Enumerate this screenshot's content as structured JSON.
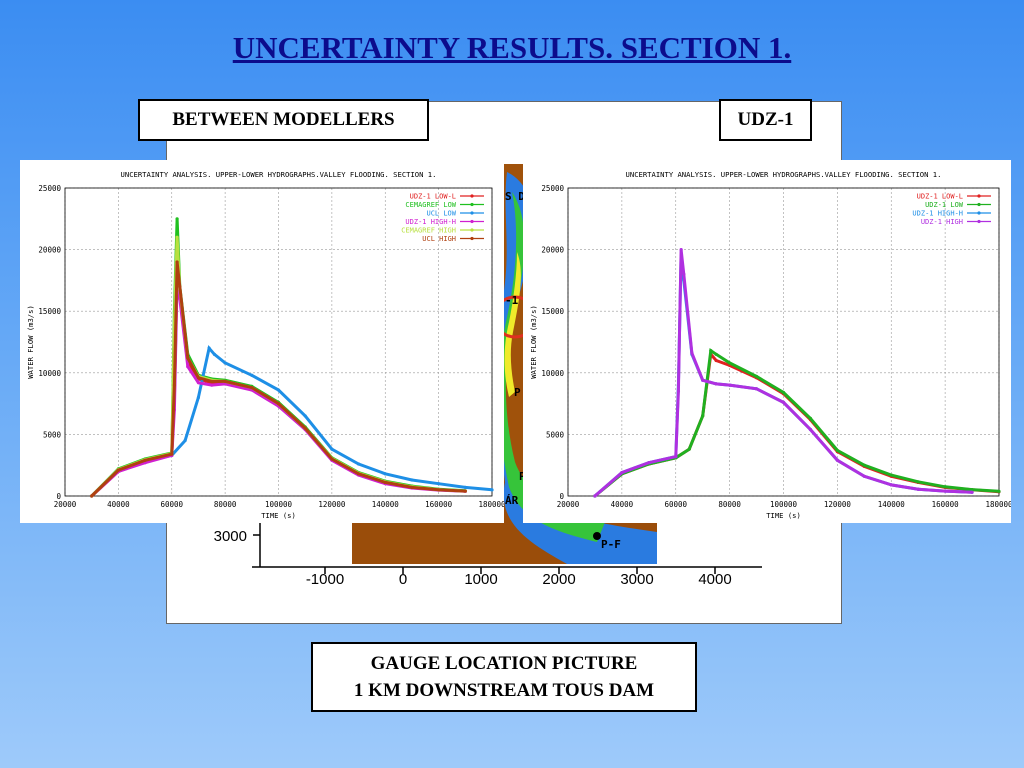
{
  "slide": {
    "title": "UNCERTAINTY RESULTS. SECTION 1.",
    "label_left": "BETWEEN MODELLERS",
    "label_right": "UDZ-1",
    "caption_line1": "GAUGE LOCATION PICTURE",
    "caption_line2": "1 KM DOWNSTREAM TOUS DAM"
  },
  "map": {
    "y_tick": "3000",
    "x_ticks": [
      "-1000",
      "0",
      "1000",
      "2000",
      "3000",
      "4000"
    ],
    "x_values": [
      -1000,
      0,
      1000,
      2000,
      3000,
      4000
    ],
    "fragments": [
      "S D",
      "-1",
      "P",
      "P",
      "ÁR",
      "P-F"
    ],
    "colors": {
      "terrain": "#a0520b",
      "flood_blue": "#2a7be0",
      "flood_green": "#36c43a",
      "flood_yellow": "#f0ea2a",
      "flood_red": "#e03020"
    }
  },
  "chart_data": [
    {
      "type": "line",
      "title": "UNCERTAINTY ANALYSIS. UPPER-LOWER HYDROGRAPHS.VALLEY FLOODING. SECTION 1.",
      "xlabel": "TIME (s)",
      "ylabel": "WATER FLOW (m3/s)",
      "xlim": [
        20000,
        180000
      ],
      "ylim": [
        0,
        25000
      ],
      "x_ticks": [
        20000,
        40000,
        60000,
        80000,
        100000,
        120000,
        140000,
        160000,
        180000
      ],
      "y_ticks": [
        0,
        5000,
        10000,
        15000,
        20000,
        25000
      ],
      "grid": true,
      "legend_position": "top-right",
      "series": [
        {
          "name": "UDZ-1 LOW-L",
          "color": "#e02020",
          "x": [
            30000,
            40000,
            50000,
            60000,
            61000,
            62000,
            63000,
            66000,
            70000,
            75000,
            80000,
            90000,
            100000,
            110000,
            120000,
            130000,
            140000,
            150000,
            160000,
            170000
          ],
          "y": [
            0,
            2000,
            2800,
            3400,
            8000,
            18000,
            16500,
            11000,
            9500,
            9200,
            9200,
            8700,
            7500,
            5500,
            3000,
            1800,
            1100,
            700,
            500,
            400
          ]
        },
        {
          "name": "CEMAGREF LOW",
          "color": "#20c020",
          "x": [
            30000,
            40000,
            50000,
            60000,
            61000,
            62000,
            63000,
            66000,
            70000,
            75000,
            80000,
            90000,
            100000,
            110000,
            120000,
            130000,
            140000,
            150000,
            160000,
            170000
          ],
          "y": [
            0,
            2200,
            3000,
            3500,
            15000,
            22500,
            17000,
            11500,
            9800,
            9500,
            9400,
            8900,
            7600,
            5600,
            3100,
            1900,
            1200,
            800,
            550,
            420
          ]
        },
        {
          "name": "UCL LOW",
          "color": "#1e8fe6",
          "x": [
            30000,
            40000,
            50000,
            60000,
            65000,
            70000,
            74000,
            76000,
            80000,
            90000,
            100000,
            110000,
            120000,
            130000,
            140000,
            150000,
            160000,
            170000,
            180000
          ],
          "y": [
            0,
            2100,
            2800,
            3300,
            4500,
            8000,
            12000,
            11500,
            10800,
            9800,
            8600,
            6500,
            3800,
            2600,
            1800,
            1300,
            1000,
            700,
            500
          ]
        },
        {
          "name": "UDZ-1 HIGH-H",
          "color": "#d020d0",
          "x": [
            30000,
            40000,
            50000,
            60000,
            61000,
            62000,
            63000,
            66000,
            70000,
            75000,
            80000,
            90000,
            100000,
            110000,
            120000,
            130000,
            140000,
            150000,
            160000,
            170000
          ],
          "y": [
            0,
            2000,
            2700,
            3300,
            7000,
            17500,
            16000,
            10500,
            9200,
            9000,
            9100,
            8600,
            7300,
            5400,
            2900,
            1700,
            1000,
            650,
            480,
            380
          ]
        },
        {
          "name": "CEMAGREF HIGH",
          "color": "#b8e040",
          "x": [
            30000,
            40000,
            50000,
            60000,
            61000,
            62000,
            63000,
            66000,
            70000,
            75000,
            80000,
            90000,
            100000,
            110000,
            120000,
            130000,
            140000,
            150000,
            160000,
            170000
          ],
          "y": [
            0,
            2150,
            2950,
            3450,
            14000,
            21000,
            16800,
            11200,
            9700,
            9400,
            9300,
            8800,
            7500,
            5500,
            3050,
            1850,
            1150,
            750,
            520,
            400
          ]
        },
        {
          "name": "UCL HIGH",
          "color": "#b04010",
          "x": [
            30000,
            40000,
            50000,
            60000,
            61000,
            62000,
            63000,
            66000,
            70000,
            75000,
            80000,
            90000,
            100000,
            110000,
            120000,
            130000,
            140000,
            150000,
            160000,
            170000
          ],
          "y": [
            0,
            2100,
            2900,
            3400,
            9000,
            19000,
            17000,
            11200,
            9600,
            9300,
            9300,
            8800,
            7500,
            5500,
            3000,
            1800,
            1100,
            700,
            500,
            400
          ]
        }
      ]
    },
    {
      "type": "line",
      "title": "UNCERTAINTY ANALYSIS. UPPER-LOWER HYDROGRAPHS.VALLEY FLOODING. SECTION 1.",
      "xlabel": "TIME (s)",
      "ylabel": "WATER FLOW (m3/s)",
      "xlim": [
        20000,
        180000
      ],
      "ylim": [
        0,
        25000
      ],
      "x_ticks": [
        20000,
        40000,
        60000,
        80000,
        100000,
        120000,
        140000,
        160000,
        180000
      ],
      "y_ticks": [
        0,
        5000,
        10000,
        15000,
        20000,
        25000
      ],
      "grid": true,
      "legend_position": "top-right",
      "series": [
        {
          "name": "UDZ-1 LOW-L",
          "color": "#e02020",
          "x": [
            30000,
            40000,
            50000,
            60000,
            65000,
            70000,
            73000,
            75000,
            80000,
            90000,
            100000,
            110000,
            120000,
            130000,
            140000,
            150000,
            160000,
            170000,
            180000
          ],
          "y": [
            0,
            1800,
            2600,
            3100,
            3800,
            6500,
            11500,
            11000,
            10600,
            9600,
            8300,
            6200,
            3600,
            2400,
            1600,
            1100,
            700,
            500,
            350
          ]
        },
        {
          "name": "UDZ-1 LOW",
          "color": "#20b020",
          "x": [
            30000,
            40000,
            50000,
            60000,
            65000,
            70000,
            73000,
            75000,
            80000,
            90000,
            100000,
            110000,
            120000,
            130000,
            140000,
            150000,
            160000,
            170000,
            180000
          ],
          "y": [
            0,
            1800,
            2600,
            3100,
            3800,
            6500,
            11800,
            11500,
            10800,
            9700,
            8400,
            6300,
            3700,
            2500,
            1700,
            1150,
            750,
            520,
            380
          ]
        },
        {
          "name": "UDZ-1 HIGH-H",
          "color": "#1e8fe6",
          "x": [
            30000,
            40000,
            50000,
            60000,
            61000,
            62000,
            63000,
            66000,
            70000,
            75000,
            80000,
            90000,
            100000,
            110000,
            120000,
            130000,
            140000,
            150000,
            160000,
            170000
          ],
          "y": [
            0,
            1900,
            2700,
            3200,
            9000,
            19500,
            17500,
            11500,
            9400,
            9100,
            9000,
            8700,
            7600,
            5400,
            2900,
            1600,
            900,
            550,
            400,
            300
          ]
        },
        {
          "name": "UDZ-1 HIGH",
          "color": "#b030e0",
          "x": [
            30000,
            40000,
            50000,
            60000,
            61000,
            62000,
            63000,
            66000,
            70000,
            75000,
            80000,
            90000,
            100000,
            110000,
            120000,
            130000,
            140000,
            150000,
            160000,
            170000
          ],
          "y": [
            0,
            1900,
            2700,
            3200,
            8500,
            20000,
            18000,
            11600,
            9400,
            9100,
            9000,
            8700,
            7600,
            5400,
            2900,
            1600,
            900,
            550,
            400,
            300
          ]
        }
      ]
    }
  ]
}
